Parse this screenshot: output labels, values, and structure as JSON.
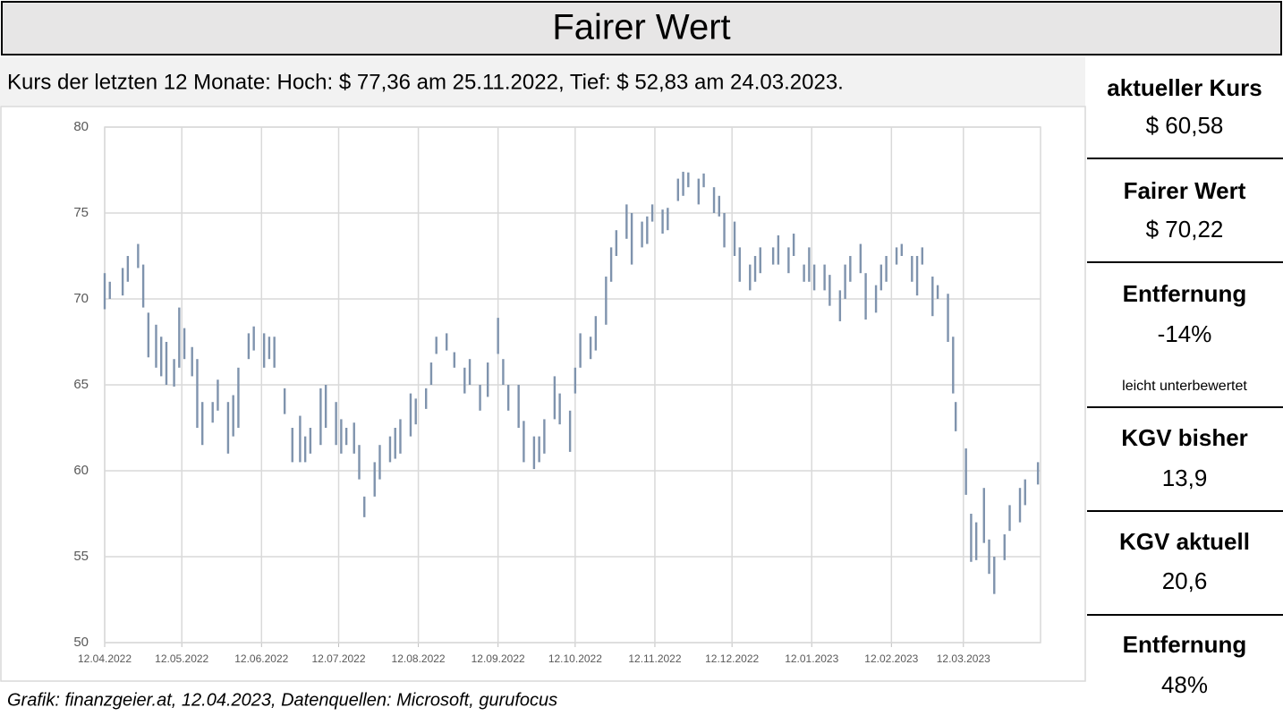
{
  "header": {
    "title": "Fairer Wert"
  },
  "subtitle": "Kurs der letzten 12 Monate: Hoch: $ 77,36 am 25.11.2022, Tief: $ 52,83 am 24.03.2023.",
  "panel": [
    {
      "label": "aktueller Kurs",
      "value": "$ 60,58"
    },
    {
      "label": "Fairer Wert",
      "value": "$ 70,22"
    },
    {
      "label": "Entfernung",
      "value": "-14%",
      "note": "leicht unterbewertet"
    },
    {
      "label": "KGV bisher",
      "value": "13,9"
    },
    {
      "label": "KGV aktuell",
      "value": "20,6"
    },
    {
      "label": "Entfernung",
      "value": "48%"
    }
  ],
  "footer": "Grafik: finanzgeier.at, 12.04.2023, Datenquellen: Microsoft, gurufocus",
  "chart_data": {
    "type": "range",
    "color": "#7f93ad",
    "grid": true,
    "xlim": [
      "2022-04-12",
      "2023-04-11"
    ],
    "xticks": [
      {
        "value": "2022-04-12",
        "label": "12.04.2022"
      },
      {
        "value": "2022-05-12",
        "label": "12.05.2022"
      },
      {
        "value": "2022-06-12",
        "label": "12.06.2022"
      },
      {
        "value": "2022-07-12",
        "label": "12.07.2022"
      },
      {
        "value": "2022-08-12",
        "label": "12.08.2022"
      },
      {
        "value": "2022-09-12",
        "label": "12.09.2022"
      },
      {
        "value": "2022-10-12",
        "label": "12.10.2022"
      },
      {
        "value": "2022-11-12",
        "label": "12.11.2022"
      },
      {
        "value": "2022-12-12",
        "label": "12.12.2022"
      },
      {
        "value": "2023-01-12",
        "label": "12.01.2023"
      },
      {
        "value": "2023-02-12",
        "label": "12.02.2023"
      },
      {
        "value": "2023-03-12",
        "label": "12.03.2023"
      }
    ],
    "ylim": [
      50,
      80
    ],
    "yticks": [
      50,
      55,
      60,
      65,
      70,
      75,
      80
    ],
    "x": [
      "2022-04-12",
      "2022-04-14",
      "2022-04-19",
      "2022-04-21",
      "2022-04-25",
      "2022-04-27",
      "2022-04-29",
      "2022-05-02",
      "2022-05-04",
      "2022-05-06",
      "2022-05-09",
      "2022-05-11",
      "2022-05-13",
      "2022-05-16",
      "2022-05-18",
      "2022-05-20",
      "2022-05-24",
      "2022-05-26",
      "2022-05-30",
      "2022-06-01",
      "2022-06-03",
      "2022-06-07",
      "2022-06-09",
      "2022-06-13",
      "2022-06-15",
      "2022-06-17",
      "2022-06-21",
      "2022-06-24",
      "2022-06-27",
      "2022-06-29",
      "2022-07-01",
      "2022-07-05",
      "2022-07-07",
      "2022-07-11",
      "2022-07-13",
      "2022-07-15",
      "2022-07-18",
      "2022-07-20",
      "2022-07-22",
      "2022-07-26",
      "2022-07-28",
      "2022-08-01",
      "2022-08-03",
      "2022-08-05",
      "2022-08-09",
      "2022-08-11",
      "2022-08-15",
      "2022-08-17",
      "2022-08-19",
      "2022-08-23",
      "2022-08-26",
      "2022-08-30",
      "2022-09-01",
      "2022-09-05",
      "2022-09-08",
      "2022-09-12",
      "2022-09-14",
      "2022-09-16",
      "2022-09-20",
      "2022-09-22",
      "2022-09-26",
      "2022-09-28",
      "2022-09-30",
      "2022-10-04",
      "2022-10-06",
      "2022-10-10",
      "2022-10-12",
      "2022-10-14",
      "2022-10-18",
      "2022-10-20",
      "2022-10-24",
      "2022-10-26",
      "2022-10-28",
      "2022-11-01",
      "2022-11-03",
      "2022-11-07",
      "2022-11-09",
      "2022-11-11",
      "2022-11-15",
      "2022-11-17",
      "2022-11-21",
      "2022-11-23",
      "2022-11-25",
      "2022-11-29",
      "2022-12-01",
      "2022-12-05",
      "2022-12-07",
      "2022-12-09",
      "2022-12-13",
      "2022-12-15",
      "2022-12-19",
      "2022-12-21",
      "2022-12-23",
      "2022-12-28",
      "2022-12-30",
      "2023-01-03",
      "2023-01-05",
      "2023-01-09",
      "2023-01-11",
      "2023-01-13",
      "2023-01-17",
      "2023-01-19",
      "2023-01-23",
      "2023-01-25",
      "2023-01-27",
      "2023-01-31",
      "2023-02-02",
      "2023-02-06",
      "2023-02-08",
      "2023-02-10",
      "2023-02-14",
      "2023-02-16",
      "2023-02-20",
      "2023-02-22",
      "2023-02-24",
      "2023-02-28",
      "2023-03-02",
      "2023-03-06",
      "2023-03-08",
      "2023-03-09",
      "2023-03-13",
      "2023-03-15",
      "2023-03-17",
      "2023-03-20",
      "2023-03-22",
      "2023-03-24",
      "2023-03-28",
      "2023-03-30",
      "2023-04-03",
      "2023-04-05",
      "2023-04-10"
    ],
    "low": [
      69.4,
      70,
      70.2,
      71,
      71.8,
      69.5,
      66.6,
      66,
      65.5,
      65,
      64.9,
      66,
      66.5,
      65.5,
      62.5,
      61.5,
      62.8,
      63.5,
      61,
      62,
      62.5,
      66.5,
      67,
      66,
      66.5,
      66,
      63.3,
      60.5,
      60.5,
      60.5,
      61,
      61.5,
      62.5,
      61.5,
      61,
      61.5,
      61,
      59.5,
      57.3,
      58.5,
      59.5,
      60.5,
      60.7,
      61,
      62,
      62.7,
      63.6,
      65,
      66.8,
      67,
      66,
      64.5,
      65,
      63.5,
      64.3,
      66.8,
      65,
      63.5,
      62.5,
      60.5,
      60.1,
      60.5,
      61,
      63,
      62.7,
      61.1,
      64.5,
      66,
      66.5,
      67,
      68.5,
      71,
      72.5,
      73.5,
      72,
      73,
      73.2,
      74.5,
      73.8,
      74,
      75.7,
      76,
      76.5,
      75.5,
      76.5,
      75,
      74.8,
      73,
      72.5,
      71,
      70.5,
      71,
      71.5,
      72,
      72,
      71.5,
      72.5,
      71,
      71,
      70.5,
      70.5,
      69.6,
      68.7,
      70,
      71,
      71.5,
      68.8,
      69.2,
      70.5,
      71,
      72,
      72.5,
      71,
      70.2,
      72,
      69,
      70,
      67.5,
      64.5,
      62.3,
      58.6,
      54.7,
      54.8,
      55.8,
      54,
      52.83,
      54.8,
      56.5,
      57,
      58,
      59.2
    ],
    "high": [
      71.5,
      71,
      71.8,
      72.5,
      73.2,
      72,
      69.2,
      68.5,
      67.8,
      67.5,
      66.5,
      69.5,
      68.3,
      67.2,
      66.5,
      64,
      64,
      65.3,
      64,
      64.4,
      66,
      68,
      68.4,
      68,
      67.8,
      67.8,
      64.8,
      62.5,
      63.2,
      62,
      62.5,
      64.8,
      65,
      64,
      63,
      62.5,
      62.8,
      61.5,
      58.5,
      60.5,
      61.5,
      62,
      62.5,
      63,
      64.5,
      64.2,
      64.8,
      66.3,
      67.8,
      68,
      66.9,
      66,
      66.5,
      65,
      66.3,
      68.9,
      66.5,
      65,
      65,
      62.9,
      62,
      62,
      63,
      65.5,
      64.5,
      63.5,
      66,
      68,
      67.8,
      69,
      71.3,
      73,
      74,
      75.5,
      75,
      74.5,
      74.8,
      75.5,
      75.2,
      75.3,
      77,
      77.4,
      77.36,
      77,
      77.3,
      76.5,
      76,
      75,
      74.5,
      73,
      72,
      72.5,
      73,
      73,
      73.7,
      73,
      73.8,
      72,
      73,
      72,
      72,
      71.4,
      70.5,
      72,
      72.5,
      73.2,
      71.5,
      70.8,
      72,
      72.5,
      73,
      73.2,
      72.5,
      72.5,
      73,
      71.3,
      70.8,
      70.3,
      67.8,
      64,
      61.3,
      57.5,
      57,
      59,
      56,
      55,
      56.3,
      58,
      59,
      59.5,
      60.5
    ]
  }
}
